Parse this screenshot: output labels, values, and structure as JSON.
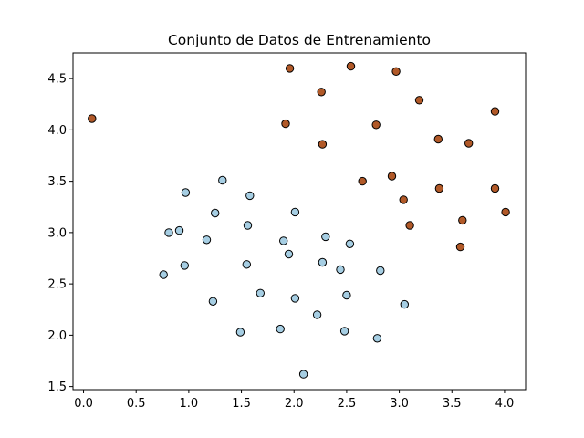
{
  "chart_data": {
    "type": "scatter",
    "title": "Conjunto de Datos de Entrenamiento",
    "xlabel": "",
    "ylabel": "",
    "xlim": [
      -0.1,
      4.2
    ],
    "ylim": [
      1.47,
      4.75
    ],
    "x_ticks": [
      0.0,
      0.5,
      1.0,
      1.5,
      2.0,
      2.5,
      3.0,
      3.5,
      4.0
    ],
    "x_tick_labels": [
      "0.0",
      "0.5",
      "1.0",
      "1.5",
      "2.0",
      "2.5",
      "3.0",
      "3.5",
      "4.0"
    ],
    "y_ticks": [
      1.5,
      2.0,
      2.5,
      3.0,
      3.5,
      4.0,
      4.5
    ],
    "y_tick_labels": [
      "1.5",
      "2.0",
      "2.5",
      "3.0",
      "3.5",
      "4.0",
      "4.5"
    ],
    "grid": false,
    "legend": "none",
    "series": [
      {
        "color": "#a6cee3",
        "edge_color": "#000000",
        "points": [
          [
            0.97,
            3.39
          ],
          [
            1.32,
            3.51
          ],
          [
            1.58,
            3.36
          ],
          [
            1.25,
            3.19
          ],
          [
            0.81,
            3.0
          ],
          [
            0.91,
            3.02
          ],
          [
            1.17,
            2.93
          ],
          [
            1.56,
            3.07
          ],
          [
            2.01,
            3.2
          ],
          [
            1.9,
            2.92
          ],
          [
            1.95,
            2.79
          ],
          [
            2.3,
            2.96
          ],
          [
            2.53,
            2.89
          ],
          [
            0.76,
            2.59
          ],
          [
            0.96,
            2.68
          ],
          [
            1.55,
            2.69
          ],
          [
            2.27,
            2.71
          ],
          [
            2.44,
            2.64
          ],
          [
            2.82,
            2.63
          ],
          [
            1.68,
            2.41
          ],
          [
            1.23,
            2.33
          ],
          [
            2.01,
            2.36
          ],
          [
            2.5,
            2.39
          ],
          [
            3.05,
            2.3
          ],
          [
            2.22,
            2.2
          ],
          [
            1.49,
            2.03
          ],
          [
            1.87,
            2.06
          ],
          [
            2.48,
            2.04
          ],
          [
            2.79,
            1.97
          ],
          [
            2.09,
            1.62
          ]
        ]
      },
      {
        "color": "#b15928",
        "edge_color": "#000000",
        "points": [
          [
            0.08,
            4.11
          ],
          [
            1.96,
            4.6
          ],
          [
            2.54,
            4.62
          ],
          [
            2.97,
            4.57
          ],
          [
            2.26,
            4.37
          ],
          [
            3.19,
            4.29
          ],
          [
            3.91,
            4.18
          ],
          [
            1.92,
            4.06
          ],
          [
            2.78,
            4.05
          ],
          [
            3.37,
            3.91
          ],
          [
            3.66,
            3.87
          ],
          [
            2.27,
            3.86
          ],
          [
            2.93,
            3.55
          ],
          [
            2.65,
            3.5
          ],
          [
            3.38,
            3.43
          ],
          [
            3.91,
            3.43
          ],
          [
            3.04,
            3.32
          ],
          [
            4.01,
            3.2
          ],
          [
            3.6,
            3.12
          ],
          [
            3.1,
            3.07
          ],
          [
            3.58,
            2.86
          ]
        ]
      }
    ]
  }
}
